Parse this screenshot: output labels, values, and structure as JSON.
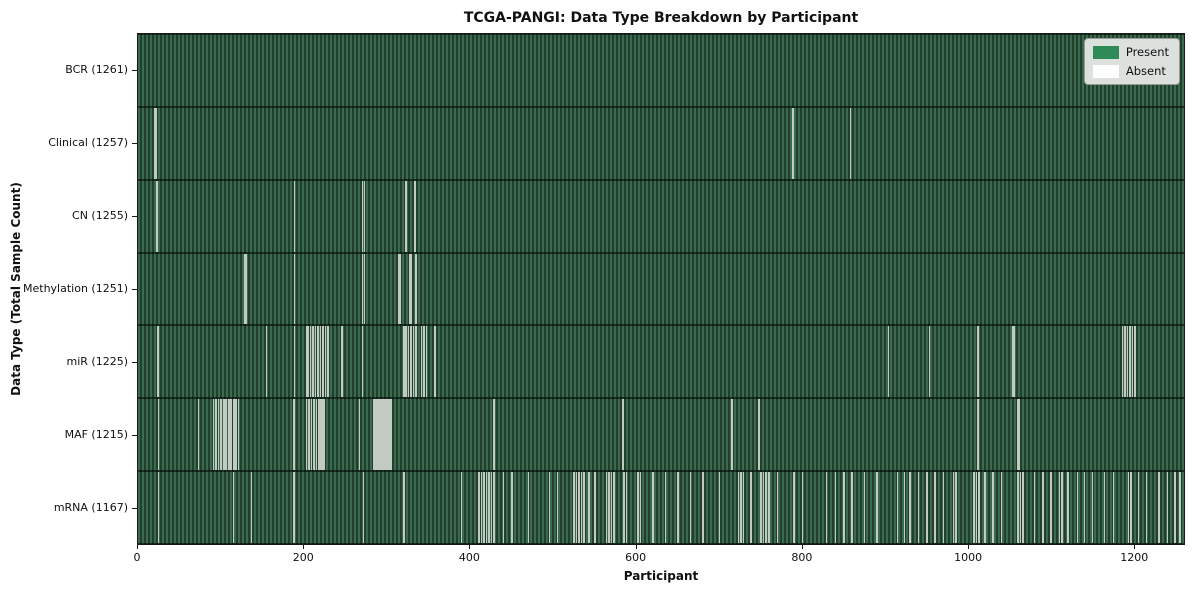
{
  "colors": {
    "present": "#2e8b57",
    "absent": "#ffffff",
    "stripe_light": "#3c6a50",
    "stripe_dark": "#21402c",
    "absent_marker": "#c2cac2",
    "axis": "#1a1a1a"
  },
  "legend": {
    "present_label": "Present",
    "absent_label": "Absent"
  },
  "chart_data": {
    "type": "heatmap",
    "title": "TCGA-PANGI: Data Type Breakdown by Participant",
    "xlabel": "Participant",
    "ylabel": "Data Type (Total Sample Count)",
    "legend_entries": [
      "Present",
      "Absent"
    ],
    "legend_position": "upper right",
    "grid": false,
    "total_participants": 1261,
    "xlim": [
      0,
      1261
    ],
    "x_ticks": [
      0,
      200,
      400,
      600,
      800,
      1000,
      1200
    ],
    "rows": [
      {
        "name": "BCR",
        "label": "BCR (1261)",
        "present_count": 1261,
        "absent_count": 0,
        "absent_indices": []
      },
      {
        "name": "Clinical",
        "label": "Clinical (1257)",
        "present_count": 1257,
        "absent_count": 4,
        "absent_indices": [
          19,
          21,
          789,
          858
        ]
      },
      {
        "name": "CN",
        "label": "CN (1255)",
        "present_count": 1255,
        "absent_count": 6,
        "absent_indices": [
          22,
          188,
          270,
          272,
          322,
          333
        ]
      },
      {
        "name": "Methylation",
        "label": "Methylation (1251)",
        "present_count": 1251,
        "absent_count": 10,
        "absent_indices": [
          128,
          130,
          188,
          270,
          272,
          313,
          315,
          327,
          329,
          334
        ]
      },
      {
        "name": "miR",
        "label": "miR (1225)",
        "present_count": 1225,
        "absent_count": 36,
        "absent_indices": [
          23,
          154,
          188,
          202,
          204,
          207,
          210,
          213,
          216,
          219,
          222,
          225,
          228,
          245,
          270,
          320,
          322,
          325,
          328,
          331,
          334,
          341,
          344,
          347,
          357,
          904,
          953,
          1012,
          1054,
          1056,
          1186,
          1189,
          1192,
          1195,
          1198,
          1201
        ]
      },
      {
        "name": "MAF",
        "label": "MAF (1215)",
        "present_count": 1215,
        "absent_count": 46,
        "absent_indices": [
          24,
          72,
          90,
          93,
          96,
          99,
          102,
          104,
          106,
          108,
          110,
          112,
          114,
          116,
          118,
          120,
          187,
          202,
          205,
          208,
          211,
          214,
          217,
          220,
          222,
          224,
          266,
          283,
          285,
          287,
          289,
          291,
          293,
          295,
          297,
          299,
          301,
          303,
          305,
          428,
          584,
          715,
          748,
          1012,
          1060,
          1062
        ]
      },
      {
        "name": "mRNA",
        "label": "mRNA (1167)",
        "present_count": 1167,
        "absent_count": 94,
        "absent_indices": [
          24,
          114,
          136,
          187,
          271,
          320,
          389,
          410,
          413,
          416,
          419,
          422,
          425,
          428,
          440,
          450,
          470,
          495,
          505,
          525,
          528,
          531,
          534,
          537,
          543,
          550,
          564,
          567,
          570,
          573,
          585,
          588,
          602,
          605,
          620,
          635,
          650,
          665,
          680,
          700,
          723,
          726,
          729,
          738,
          750,
          753,
          756,
          760,
          770,
          790,
          800,
          829,
          840,
          850,
          860,
          875,
          890,
          915,
          923,
          930,
          940,
          950,
          960,
          970,
          982,
          985,
          1007,
          1010,
          1013,
          1020,
          1030,
          1040,
          1060,
          1063,
          1066,
          1080,
          1090,
          1100,
          1110,
          1113,
          1120,
          1132,
          1140,
          1150,
          1164,
          1175,
          1193,
          1196,
          1205,
          1215,
          1230,
          1240,
          1249,
          1255
        ]
      }
    ]
  }
}
